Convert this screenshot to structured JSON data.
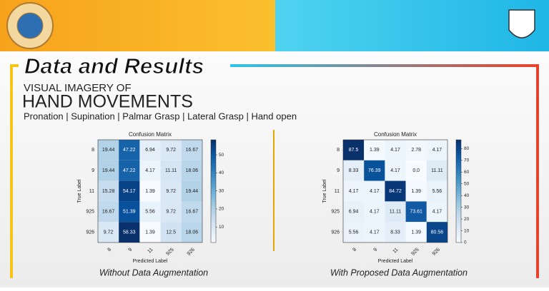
{
  "slide": {
    "title": "Data and Results",
    "subtitle_small": "VISUAL IMAGERY OF",
    "subtitle_large": "HAND MOVEMENTS",
    "movements": "Pronation | Supination | Palmar Grasp | Lateral Grasp | Hand open"
  },
  "chart_data": [
    {
      "type": "heatmap",
      "title": "Confusion Matrix",
      "xlabel": "Predicted Label",
      "ylabel": "True Label",
      "caption": "Without Data Augmentation",
      "x_categories": [
        "8",
        "9",
        "11",
        "925",
        "926"
      ],
      "y_categories": [
        "8",
        "9",
        "11",
        "925",
        "926"
      ],
      "values": [
        [
          19.44,
          47.22,
          6.94,
          9.72,
          16.67
        ],
        [
          19.44,
          47.22,
          4.17,
          11.11,
          18.06
        ],
        [
          15.28,
          54.17,
          1.39,
          9.72,
          19.44
        ],
        [
          16.67,
          51.39,
          5.56,
          9.72,
          16.67
        ],
        [
          9.72,
          58.33,
          1.39,
          12.5,
          18.06
        ]
      ],
      "colormap": "Blues",
      "clim": [
        1.39,
        58.33
      ],
      "cticks": [
        10,
        20,
        30,
        40,
        50
      ]
    },
    {
      "type": "heatmap",
      "title": "Confusion Matrix",
      "xlabel": "Predicted Label",
      "ylabel": "True Label",
      "caption": "With Proposed Data Augmentation",
      "x_categories": [
        "8",
        "9",
        "11",
        "925",
        "926"
      ],
      "y_categories": [
        "8",
        "9",
        "11",
        "925",
        "926"
      ],
      "values": [
        [
          87.5,
          1.39,
          4.17,
          2.78,
          4.17
        ],
        [
          8.33,
          76.39,
          4.17,
          0,
          11.11
        ],
        [
          4.17,
          4.17,
          84.72,
          1.39,
          5.56
        ],
        [
          6.94,
          4.17,
          11.11,
          73.61,
          4.17
        ],
        [
          5.56,
          4.17,
          8.33,
          1.39,
          80.56
        ]
      ],
      "value_labels": [
        [
          "87.5",
          "1.39",
          "4.17",
          "2.78",
          "4.17"
        ],
        [
          "8.33",
          "76.39",
          "4.17",
          "0.0",
          "11.11"
        ],
        [
          "4.17",
          "4.17",
          "84.72",
          "1.39",
          "5.56"
        ],
        [
          "6.94",
          "4.17",
          "11.11",
          "73.61",
          "4.17"
        ],
        [
          "5.56",
          "4.17",
          "8.33",
          "1.39",
          "80.56"
        ]
      ],
      "colormap": "Blues",
      "clim": [
        0,
        87.5
      ],
      "cticks": [
        0,
        10,
        20,
        30,
        40,
        50,
        60,
        70,
        80
      ]
    }
  ]
}
